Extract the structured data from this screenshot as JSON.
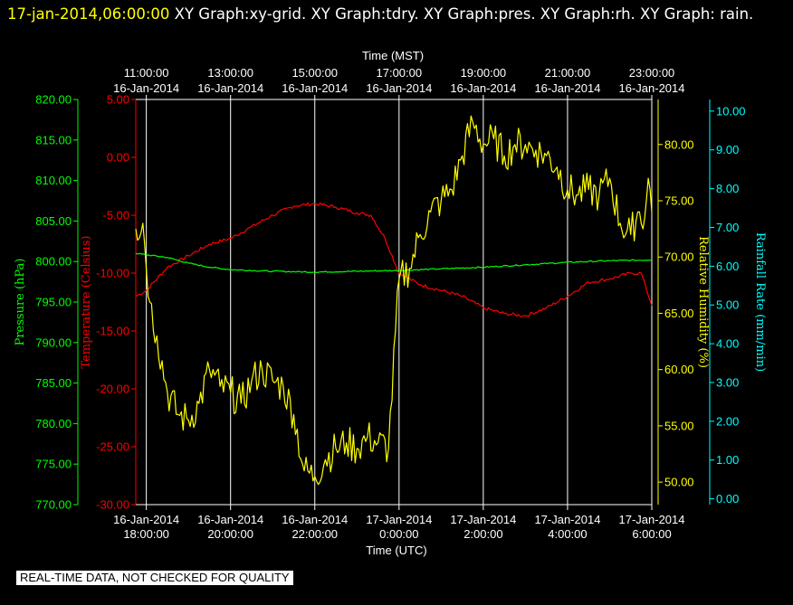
{
  "header": {
    "timestamp": "17-jan-2014,06:00:00",
    "titles": "XY Graph:xy-grid.  XY Graph:tdry.  XY Graph:pres.  XY Graph:rh.  XY Graph: rain."
  },
  "footer": {
    "qc_note": "REAL-TIME DATA, NOT CHECKED FOR QUALITY"
  },
  "colors": {
    "background": "#000000",
    "temp": "#ff0000",
    "pres": "#00ff00",
    "rh": "#ffff00",
    "rain": "#00ffff",
    "grid": "#ffffff"
  },
  "chart_data": {
    "type": "line",
    "grid": "vertical lines only",
    "x_top": {
      "label": "Time (MST)",
      "ticks": [
        {
          "time": "11:00:00",
          "date": "16-Jan-2014"
        },
        {
          "time": "13:00:00",
          "date": "16-Jan-2014"
        },
        {
          "time": "15:00:00",
          "date": "16-Jan-2014"
        },
        {
          "time": "17:00:00",
          "date": "16-Jan-2014"
        },
        {
          "time": "19:00:00",
          "date": "16-Jan-2014"
        },
        {
          "time": "21:00:00",
          "date": "16-Jan-2014"
        },
        {
          "time": "23:00:00",
          "date": "16-Jan-2014"
        }
      ]
    },
    "x_bottom": {
      "label": "Time (UTC)",
      "range": [
        "2014-01-16 17:45",
        "2014-01-17 06:00"
      ],
      "ticks": [
        {
          "date": "16-Jan-2014",
          "time": "18:00:00"
        },
        {
          "date": "16-Jan-2014",
          "time": "20:00:00"
        },
        {
          "date": "16-Jan-2014",
          "time": "22:00:00"
        },
        {
          "date": "17-Jan-2014",
          "time": "0:00:00"
        },
        {
          "date": "17-Jan-2014",
          "time": "2:00:00"
        },
        {
          "date": "17-Jan-2014",
          "time": "4:00:00"
        },
        {
          "date": "17-Jan-2014",
          "time": "6:00:00"
        }
      ]
    },
    "axes": {
      "pres": {
        "label": "Pressure (hPa)",
        "min": 770,
        "max": 820,
        "ticks": [
          "770.00",
          "775.00",
          "780.00",
          "785.00",
          "790.00",
          "795.00",
          "800.00",
          "805.00",
          "810.00",
          "815.00",
          "820.00"
        ]
      },
      "temp": {
        "label": "Temperature (Celsius)",
        "min": -30,
        "max": 5,
        "ticks": [
          "-30.00",
          "-25.00",
          "-20.00",
          "-15.00",
          "-10.00",
          "-5.00",
          "0.00",
          "5.00"
        ]
      },
      "rh": {
        "label": "Relative Humidity (%)",
        "min": 48,
        "max": 84,
        "ticks": [
          "50.00",
          "55.00",
          "60.00",
          "65.00",
          "70.00",
          "75.00",
          "80.00"
        ]
      },
      "rain": {
        "label": "Rainfall Rate (mm/min)",
        "min": -0.15,
        "max": 10.3,
        "ticks": [
          "0.00",
          "1.00",
          "2.00",
          "3.00",
          "4.00",
          "5.00",
          "6.00",
          "7.00",
          "8.00",
          "9.00",
          "10.00"
        ]
      }
    },
    "series": [
      {
        "name": "tdry",
        "axis": "temp",
        "color": "#ff0000",
        "x": [
          "2014-01-16 17:45",
          "2014-01-16 18:00",
          "2014-01-16 18:30",
          "2014-01-16 19:00",
          "2014-01-16 19:30",
          "2014-01-16 20:00",
          "2014-01-16 20:30",
          "2014-01-16 21:00",
          "2014-01-16 21:30",
          "2014-01-16 22:00",
          "2014-01-16 22:30",
          "2014-01-16 23:00",
          "2014-01-16 23:20",
          "2014-01-16 23:40",
          "2014-01-17 00:00",
          "2014-01-17 00:30",
          "2014-01-17 01:00",
          "2014-01-17 01:30",
          "2014-01-17 02:00",
          "2014-01-17 02:30",
          "2014-01-17 03:00",
          "2014-01-17 03:30",
          "2014-01-17 04:00",
          "2014-01-17 04:30",
          "2014-01-17 05:00",
          "2014-01-17 05:30",
          "2014-01-17 05:45",
          "2014-01-17 06:00"
        ],
        "values": [
          -12.0,
          -11.5,
          -9.5,
          -8.5,
          -7.5,
          -7.0,
          -6.0,
          -5.0,
          -4.2,
          -4.0,
          -4.3,
          -4.8,
          -5.0,
          -7.0,
          -10.0,
          -11.0,
          -11.5,
          -12.0,
          -13.0,
          -13.5,
          -13.7,
          -13.0,
          -12.0,
          -10.8,
          -10.5,
          -10.0,
          -10.0,
          -12.8
        ]
      },
      {
        "name": "pres",
        "axis": "pres",
        "color": "#00ff00",
        "x": [
          "2014-01-16 17:45",
          "2014-01-16 18:30",
          "2014-01-16 19:00",
          "2014-01-16 19:30",
          "2014-01-16 20:00",
          "2014-01-16 21:00",
          "2014-01-16 22:00",
          "2014-01-16 23:00",
          "2014-01-17 00:00",
          "2014-01-17 01:00",
          "2014-01-17 02:00",
          "2014-01-17 03:00",
          "2014-01-17 04:00",
          "2014-01-17 05:00",
          "2014-01-17 06:00"
        ],
        "values": [
          801.0,
          800.5,
          799.8,
          799.3,
          799.0,
          798.8,
          798.7,
          798.8,
          798.9,
          799.1,
          799.3,
          799.6,
          799.9,
          800.1,
          800.2
        ]
      },
      {
        "name": "rh",
        "axis": "rh",
        "color": "#ffff00",
        "x": [
          "2014-01-16 17:45",
          "2014-01-16 17:55",
          "2014-01-16 18:05",
          "2014-01-16 18:15",
          "2014-01-16 18:30",
          "2014-01-16 18:45",
          "2014-01-16 19:00",
          "2014-01-16 19:15",
          "2014-01-16 19:30",
          "2014-01-16 19:45",
          "2014-01-16 20:00",
          "2014-01-16 20:15",
          "2014-01-16 20:30",
          "2014-01-16 20:45",
          "2014-01-16 21:00",
          "2014-01-16 21:15",
          "2014-01-16 21:30",
          "2014-01-16 21:45",
          "2014-01-16 22:00",
          "2014-01-16 22:15",
          "2014-01-16 22:30",
          "2014-01-16 22:45",
          "2014-01-16 23:00",
          "2014-01-16 23:15",
          "2014-01-16 23:30",
          "2014-01-16 23:45",
          "2014-01-17 00:00",
          "2014-01-17 00:15",
          "2014-01-17 00:30",
          "2014-01-17 00:45",
          "2014-01-17 01:00",
          "2014-01-17 01:15",
          "2014-01-17 01:30",
          "2014-01-17 01:45",
          "2014-01-17 02:00",
          "2014-01-17 02:15",
          "2014-01-17 02:30",
          "2014-01-17 02:45",
          "2014-01-17 03:00",
          "2014-01-17 03:15",
          "2014-01-17 03:30",
          "2014-01-17 03:45",
          "2014-01-17 04:00",
          "2014-01-17 04:15",
          "2014-01-17 04:30",
          "2014-01-17 04:45",
          "2014-01-17 05:00",
          "2014-01-17 05:15",
          "2014-01-17 05:30",
          "2014-01-17 05:40",
          "2014-01-17 05:50",
          "2014-01-17 05:55",
          "2014-01-17 06:00"
        ],
        "values": [
          72.5,
          73.0,
          66.0,
          63.0,
          58.0,
          56.0,
          55.5,
          57.0,
          60.0,
          58.5,
          58.0,
          57.0,
          59.0,
          60.0,
          59.0,
          58.5,
          56.0,
          51.0,
          50.5,
          52.0,
          53.0,
          53.5,
          53.0,
          54.0,
          53.5,
          53.0,
          68.0,
          69.0,
          72.0,
          74.0,
          75.0,
          76.0,
          79.0,
          82.0,
          80.0,
          80.5,
          79.0,
          80.0,
          80.0,
          79.5,
          79.0,
          78.0,
          76.0,
          75.5,
          76.0,
          75.5,
          77.0,
          73.0,
          72.0,
          74.0,
          73.5,
          77.0,
          74.0
        ]
      },
      {
        "name": "rain",
        "axis": "rain",
        "color": "#00ffff",
        "x": [],
        "values": []
      }
    ]
  }
}
